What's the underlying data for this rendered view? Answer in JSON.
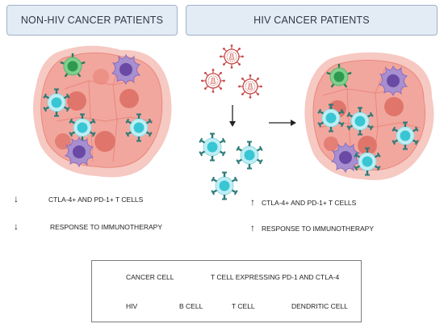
{
  "headers": {
    "left": "NON-HIV CANCER PATIENTS",
    "right": "HIV CANCER PATIENTS"
  },
  "left_notes": {
    "line1_arrow": "↓",
    "line1": "CTLA-4+ AND  PD-1+ T CELLS",
    "line2_arrow": "↓",
    "line2": "RESPONSE TO IMMUNOTHERAPY"
  },
  "right_notes": {
    "line1_arrow": "↑",
    "line1": "CTLA-4+ AND PD-1+ T CELLS",
    "line2_arrow": "↑",
    "line2": "RESPONSE TO IMMUNOTHERAPY"
  },
  "legend": {
    "cancer_cell": "CANCER CELL",
    "t_cell_pd1_ctla4": "T CELL EXPRESSING PD-1 AND CTLA-4",
    "hiv": "HIV",
    "b_cell": "B CELL",
    "t_cell": "T CELL",
    "dendritic_cell": "DENDRITIC CELL"
  },
  "colors": {
    "tumor_fill": "#f2a79e",
    "tumor_shadow": "#f6c9c2",
    "tumor_nucleus": "#e0766b",
    "tumor_line": "#e8877c",
    "t_cell_outer": "#bfeef3",
    "t_cell_inner": "#39c6d4",
    "t_cell_receptor": "#2d7a78",
    "b_cell_outer": "#7fd08e",
    "b_cell_inner": "#2f9a4f",
    "dendritic_outer": "#a78fd0",
    "dendritic_inner": "#6a4aa4",
    "hiv_color": "#c74a4a"
  }
}
